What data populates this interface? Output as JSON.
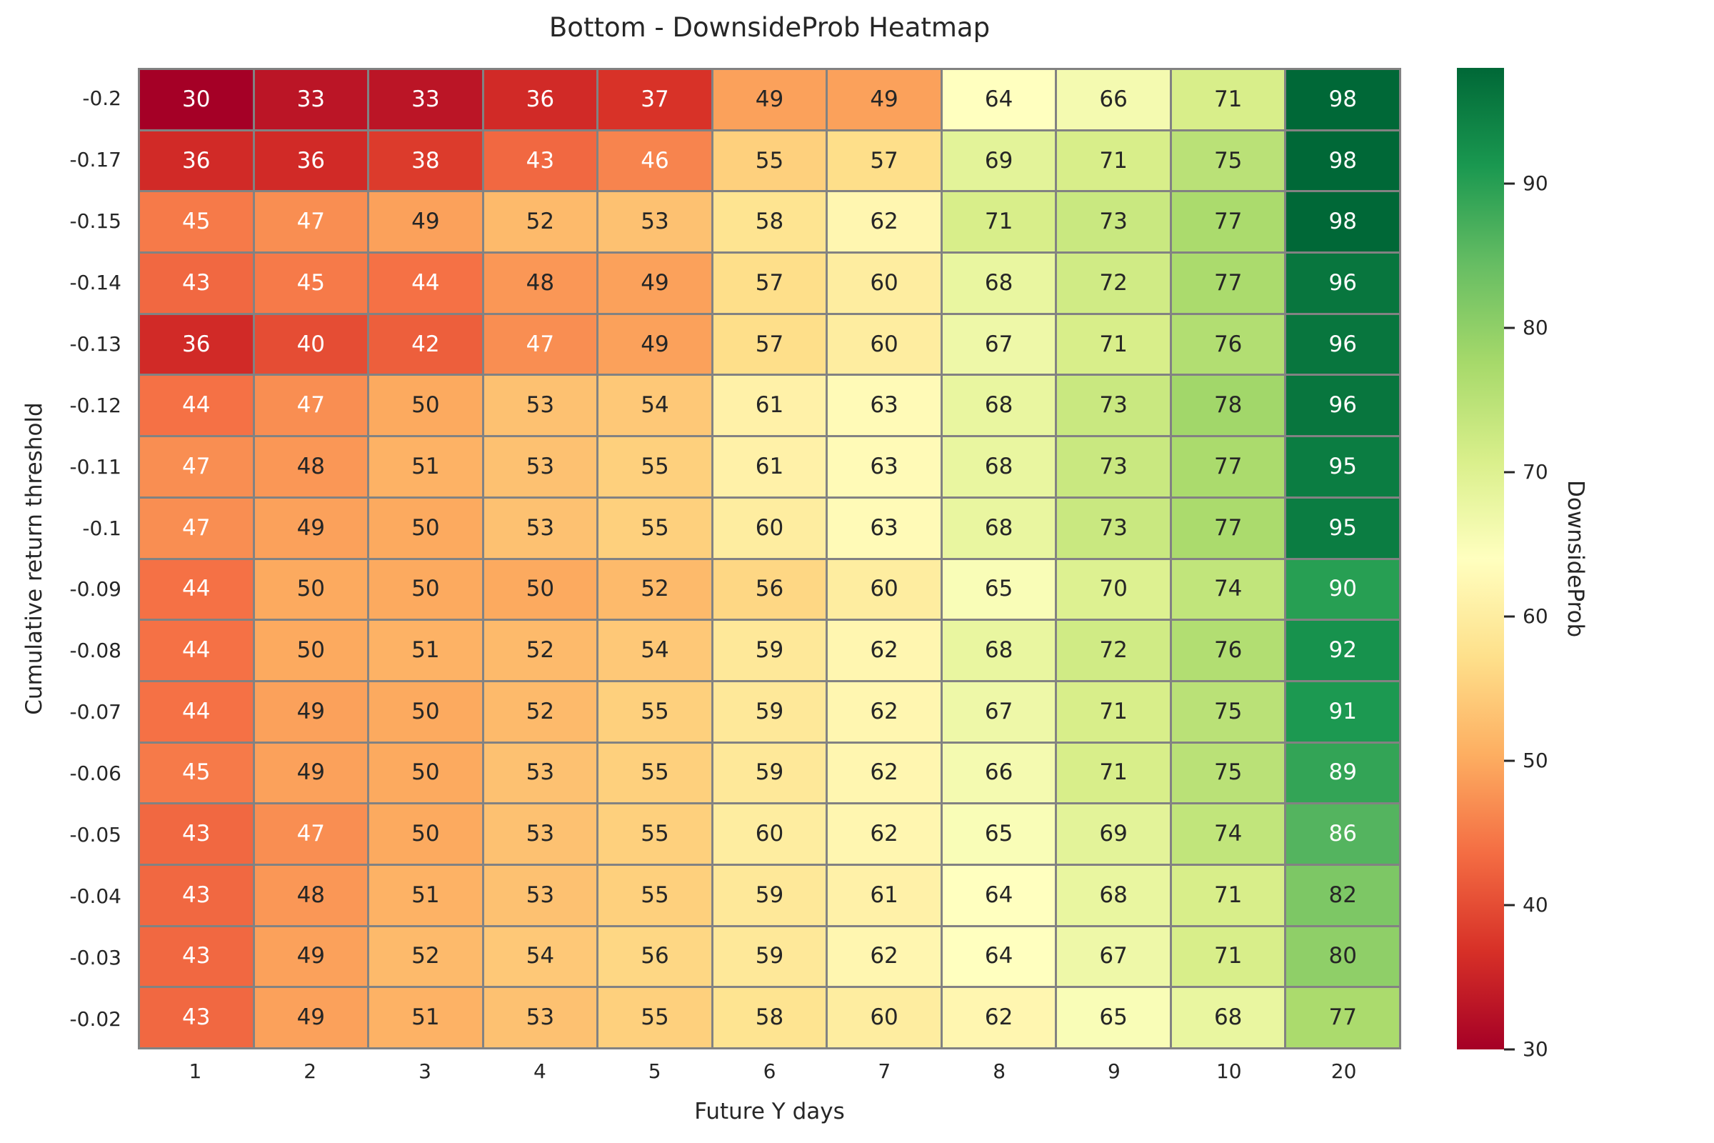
{
  "chart_data": {
    "type": "heatmap",
    "title": "Bottom - DownsideProb Heatmap",
    "xlabel": "Future Y days",
    "ylabel": "Cumulative return threshold",
    "x_ticks": [
      "1",
      "2",
      "3",
      "4",
      "5",
      "6",
      "7",
      "8",
      "9",
      "10",
      "20"
    ],
    "y_ticks": [
      "-0.2",
      "-0.17",
      "-0.15",
      "-0.14",
      "-0.13",
      "-0.12",
      "-0.11",
      "-0.1",
      "-0.09",
      "-0.08",
      "-0.07",
      "-0.06",
      "-0.05",
      "-0.04",
      "-0.03",
      "-0.02"
    ],
    "values": [
      [
        30,
        33,
        33,
        36,
        37,
        49,
        49,
        64,
        66,
        71,
        98
      ],
      [
        36,
        36,
        38,
        43,
        46,
        55,
        57,
        69,
        71,
        75,
        98
      ],
      [
        45,
        47,
        49,
        52,
        53,
        58,
        62,
        71,
        73,
        77,
        98
      ],
      [
        43,
        45,
        44,
        48,
        49,
        57,
        60,
        68,
        72,
        77,
        96
      ],
      [
        36,
        40,
        42,
        47,
        49,
        57,
        60,
        67,
        71,
        76,
        96
      ],
      [
        44,
        47,
        50,
        53,
        54,
        61,
        63,
        68,
        73,
        78,
        96
      ],
      [
        47,
        48,
        51,
        53,
        55,
        61,
        63,
        68,
        73,
        77,
        95
      ],
      [
        47,
        49,
        50,
        53,
        55,
        60,
        63,
        68,
        73,
        77,
        95
      ],
      [
        44,
        50,
        50,
        50,
        52,
        56,
        60,
        65,
        70,
        74,
        90
      ],
      [
        44,
        50,
        51,
        52,
        54,
        59,
        62,
        68,
        72,
        76,
        92
      ],
      [
        44,
        49,
        50,
        52,
        55,
        59,
        62,
        67,
        71,
        75,
        91
      ],
      [
        45,
        49,
        50,
        53,
        55,
        59,
        62,
        66,
        71,
        75,
        89
      ],
      [
        43,
        47,
        50,
        53,
        55,
        60,
        62,
        65,
        69,
        74,
        86
      ],
      [
        43,
        48,
        51,
        53,
        55,
        59,
        61,
        64,
        68,
        71,
        82
      ],
      [
        43,
        49,
        52,
        54,
        56,
        59,
        62,
        64,
        67,
        71,
        80
      ],
      [
        43,
        49,
        51,
        53,
        55,
        58,
        60,
        62,
        65,
        68,
        77
      ]
    ],
    "colorbar": {
      "label": "DownsideProb",
      "ticks": [
        30,
        40,
        50,
        60,
        70,
        80,
        90
      ],
      "vmin": 30,
      "vmax": 98,
      "colormap_name": "RdYlGn",
      "colormap": [
        "#a50026",
        "#d73027",
        "#f46d43",
        "#fdae61",
        "#fee08b",
        "#ffffbf",
        "#d9ef8b",
        "#a6d96a",
        "#66bd63",
        "#1a9850",
        "#006837"
      ]
    },
    "grid_line_color": "#828282",
    "annot_dark_color": "#262626",
    "annot_light_color": "#ffffff",
    "luminance_threshold": 0.408
  }
}
